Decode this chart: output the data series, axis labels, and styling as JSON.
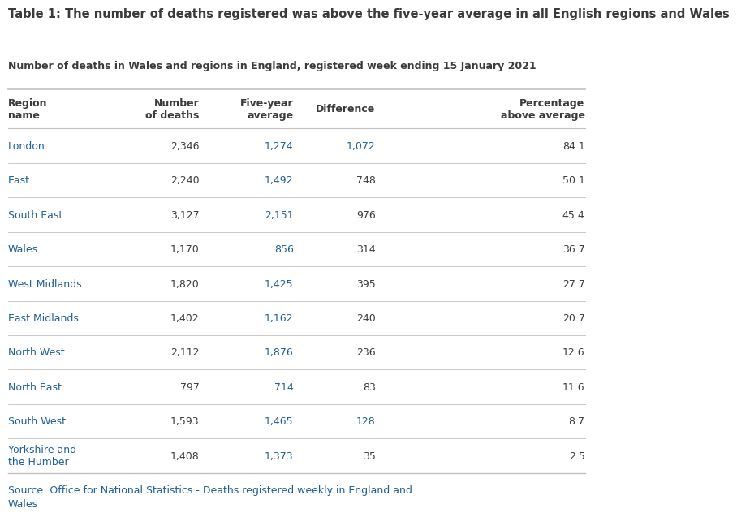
{
  "title_bold": "Table 1: The number of deaths registered was above the five-year average in all English regions and Wales",
  "subtitle": "Number of deaths in Wales and regions in England, registered week ending 15 January 2021",
  "source_text": "Source: Office for National Statistics - Deaths registered weekly in England and\nWales",
  "col_headers": [
    "Region\nname",
    "Number\nof deaths",
    "Five-year\naverage",
    "Difference",
    "Percentage\nabove average"
  ],
  "regions": [
    "London",
    "East",
    "South East",
    "Wales",
    "West Midlands",
    "East Midlands",
    "North West",
    "North East",
    "South West",
    "Yorkshire and\nthe Humber"
  ],
  "num_deaths": [
    "2,346",
    "2,240",
    "3,127",
    "1,170",
    "1,820",
    "1,402",
    "2,112",
    "797",
    "1,593",
    "1,408"
  ],
  "five_year_avg": [
    "1,274",
    "1,492",
    "2,151",
    "856",
    "1,425",
    "1,162",
    "1,876",
    "714",
    "1,465",
    "1,373"
  ],
  "difference": [
    "1,072",
    "748",
    "976",
    "314",
    "395",
    "240",
    "236",
    "83",
    "128",
    "35"
  ],
  "diff_colors": [
    "blue",
    "dark",
    "dark",
    "dark",
    "dark",
    "dark",
    "dark",
    "dark",
    "blue",
    "dark"
  ],
  "pct_above": [
    "84.1",
    "50.1",
    "45.4",
    "36.7",
    "27.7",
    "20.7",
    "12.6",
    "11.6",
    "8.7",
    "2.5"
  ],
  "color_blue": "#206095",
  "color_dark": "#3b3b3b",
  "color_line": "#c0c0c0",
  "color_bg": "#ffffff",
  "title_fontsize": 10.5,
  "subtitle_fontsize": 9.0,
  "header_fontsize": 9.0,
  "cell_fontsize": 9.0,
  "source_fontsize": 9.0
}
